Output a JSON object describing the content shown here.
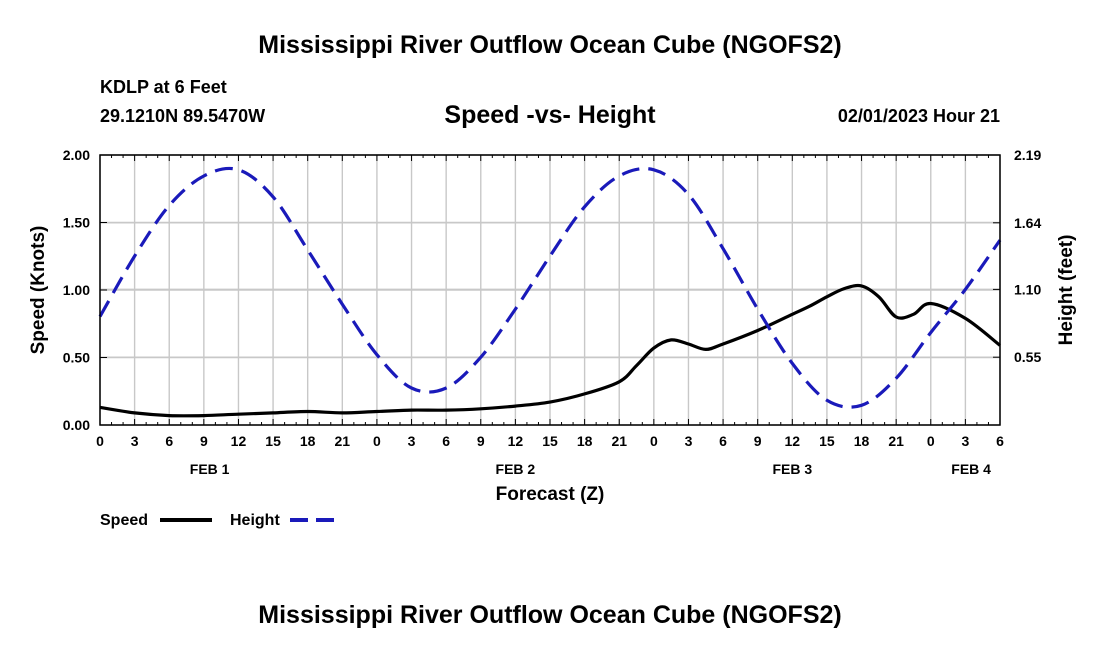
{
  "header": {
    "main_title": "Mississippi River Outflow Ocean Cube (NGOFS2)",
    "station": "KDLP at 6 Feet",
    "coords": "29.1210N  89.5470W",
    "subtitle": "Speed -vs- Height",
    "datetime": "02/01/2023 Hour 21",
    "bottom_title": "Mississippi River Outflow Ocean Cube (NGOFS2)"
  },
  "colors": {
    "speed": "#000000",
    "height": "#1a1aba",
    "grid": "#c8c8c8"
  },
  "chart_data": {
    "type": "line",
    "title": "Speed -vs- Height",
    "xlabel": "Forecast (Z)",
    "ylabel_left": "Speed (Knots)",
    "ylabel_right": "Height (feet)",
    "x_range_hours": [
      0,
      78
    ],
    "ylim_left": [
      0,
      2.0
    ],
    "ylim_right": [
      0,
      2.19
    ],
    "x_tick_labels": [
      "0",
      "3",
      "6",
      "9",
      "12",
      "15",
      "18",
      "21",
      "0",
      "3",
      "6",
      "9",
      "12",
      "15",
      "18",
      "21",
      "0",
      "3",
      "6",
      "9",
      "12",
      "15",
      "18",
      "21",
      "0",
      "3",
      "6"
    ],
    "y_tick_labels_left": [
      "0.00",
      "0.50",
      "1.00",
      "1.50",
      "2.00"
    ],
    "y_tick_labels_right": [
      "0.55",
      "1.10",
      "1.64",
      "2.19"
    ],
    "day_labels": [
      {
        "label": "FEB 1",
        "hour": 9.5
      },
      {
        "label": "FEB 2",
        "hour": 36
      },
      {
        "label": "FEB 3",
        "hour": 60
      },
      {
        "label": "FEB 4",
        "hour": 75.5
      }
    ],
    "legend": [
      {
        "name": "Speed",
        "style": "solid"
      },
      {
        "name": "Height",
        "style": "dashed"
      }
    ],
    "series": [
      {
        "name": "Speed",
        "axis": "left",
        "style": "solid",
        "x": [
          0,
          3,
          6,
          9,
          12,
          15,
          18,
          21,
          24,
          27,
          30,
          33,
          36,
          39,
          42,
          45,
          46.5,
          48,
          49.5,
          51,
          52.5,
          54,
          57,
          60,
          61.5,
          63,
          64.5,
          66,
          67.5,
          69,
          70.5,
          72,
          75,
          78
        ],
        "y": [
          0.13,
          0.09,
          0.07,
          0.07,
          0.08,
          0.09,
          0.1,
          0.09,
          0.1,
          0.11,
          0.11,
          0.12,
          0.14,
          0.17,
          0.23,
          0.32,
          0.44,
          0.57,
          0.63,
          0.6,
          0.56,
          0.6,
          0.7,
          0.82,
          0.88,
          0.95,
          1.01,
          1.03,
          0.95,
          0.8,
          0.82,
          0.9,
          0.79,
          0.59
        ]
      },
      {
        "name": "Height",
        "axis": "right",
        "style": "dashed",
        "x": [
          0,
          3,
          6,
          9,
          12,
          15,
          18,
          21,
          24,
          27,
          30,
          33,
          36,
          39,
          42,
          45,
          48,
          51,
          54,
          57,
          60,
          63,
          66,
          69,
          72,
          75,
          78
        ],
        "y": [
          0.88,
          1.37,
          1.78,
          2.02,
          2.07,
          1.85,
          1.42,
          0.98,
          0.57,
          0.3,
          0.3,
          0.55,
          0.94,
          1.37,
          1.77,
          2.02,
          2.07,
          1.87,
          1.43,
          0.94,
          0.5,
          0.2,
          0.16,
          0.38,
          0.75,
          1.1,
          1.5
        ]
      }
    ]
  }
}
